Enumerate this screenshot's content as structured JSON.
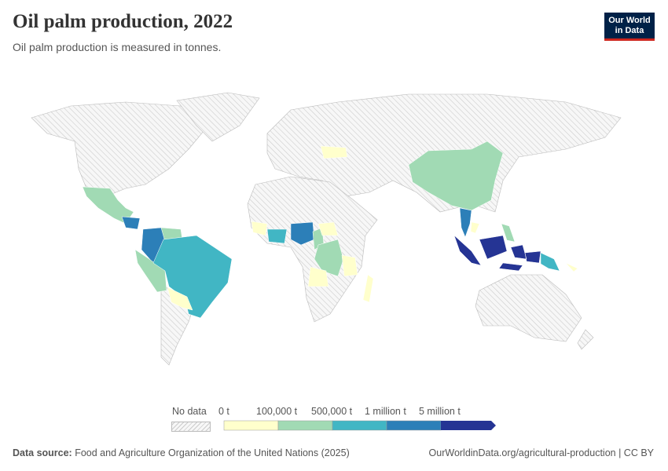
{
  "header": {
    "title": "Oil palm production, 2022",
    "subtitle": "Oil palm production is measured in tonnes.",
    "logo_text": "Our World in Data"
  },
  "legend": {
    "no_data_label": "No data",
    "bins": [
      {
        "label": "0 t",
        "color": "#ffffcc"
      },
      {
        "label": "100,000 t",
        "color": "#a1dab4"
      },
      {
        "label": "500,000 t",
        "color": "#41b6c4"
      },
      {
        "label": "1 million t",
        "color": "#2c7fb8"
      },
      {
        "label": "5 million t",
        "color": "#253494"
      }
    ]
  },
  "colors": {
    "no_data": "#f2f2f2",
    "bin0": "#ffffcc",
    "bin1": "#a1dab4",
    "bin2": "#41b6c4",
    "bin3": "#2c7fb8",
    "bin4": "#253494"
  },
  "footer": {
    "source_label": "Data source:",
    "source": "Food and Agriculture Organization of the United Nations (2025)",
    "link": "OurWorldinData.org/agricultural-production | CC BY"
  }
}
